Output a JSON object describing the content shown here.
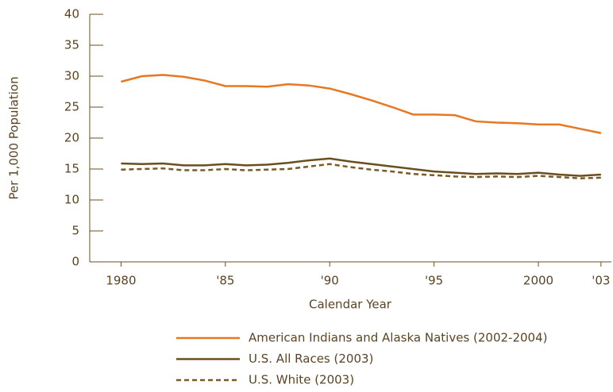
{
  "chart_data": {
    "type": "line",
    "ylabel": "Per 1,000 Population",
    "xlabel": "Calendar Year",
    "x": [
      1980,
      1981,
      1982,
      1983,
      1984,
      1985,
      1986,
      1987,
      1988,
      1989,
      1990,
      1991,
      1992,
      1993,
      1994,
      1995,
      1996,
      1997,
      1998,
      1999,
      2000,
      2001,
      2002,
      2003
    ],
    "series": [
      {
        "name": "American Indians and Alaska Natives (2002-2004)",
        "color": "#e87722",
        "style": "solid",
        "values": [
          29.1,
          30.0,
          30.2,
          29.9,
          29.3,
          28.4,
          28.4,
          28.3,
          28.7,
          28.5,
          28.0,
          27.1,
          26.1,
          25.0,
          23.8,
          23.8,
          23.7,
          22.7,
          22.5,
          22.4,
          22.2,
          22.2,
          21.5,
          20.8
        ]
      },
      {
        "name": "U.S. All Races (2003)",
        "color": "#6b4e1e",
        "style": "solid",
        "values": [
          15.9,
          15.8,
          15.9,
          15.6,
          15.6,
          15.8,
          15.6,
          15.7,
          16.0,
          16.4,
          16.7,
          16.2,
          15.8,
          15.4,
          15.0,
          14.6,
          14.4,
          14.2,
          14.3,
          14.2,
          14.4,
          14.1,
          13.9,
          14.1
        ]
      },
      {
        "name": "U.S. White (2003)",
        "color": "#7a5a25",
        "style": "dashed",
        "values": [
          14.9,
          15.0,
          15.1,
          14.8,
          14.8,
          15.0,
          14.8,
          14.9,
          15.0,
          15.4,
          15.8,
          15.3,
          14.9,
          14.6,
          14.2,
          14.0,
          13.8,
          13.7,
          13.8,
          13.7,
          13.9,
          13.7,
          13.5,
          13.6
        ]
      }
    ],
    "xlim": [
      1978.5,
      2003.5
    ],
    "xticks": [
      1980,
      {
        "value": 1985,
        "label": "'85"
      },
      {
        "value": 1990,
        "label": "'90"
      },
      {
        "value": 1995,
        "label": "'95"
      },
      2000,
      {
        "value": 2003,
        "label": "'03"
      }
    ],
    "ylim": [
      0,
      40
    ],
    "yticks": [
      0,
      5,
      10,
      15,
      20,
      25,
      30,
      35,
      40
    ],
    "legend": "bottom"
  }
}
